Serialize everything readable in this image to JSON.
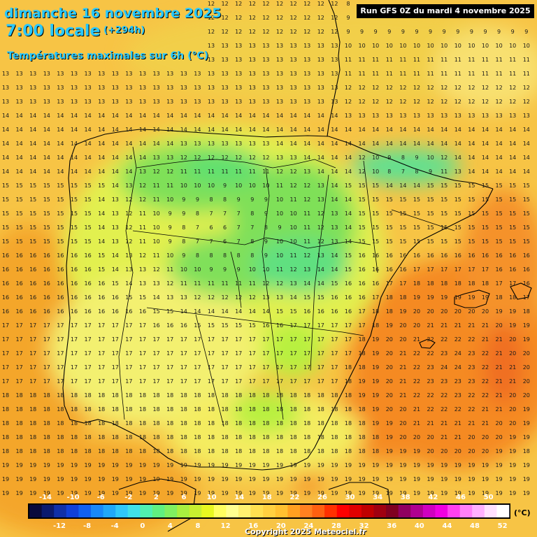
{
  "header": {
    "date": "dimanche 16 novembre 2025",
    "hour": "7:00 locale",
    "offset": "(+294h)",
    "variable": "Températures maximales sur 6h (°C)",
    "run": "Run GFS 0Z du mardi 4 novembre 2025"
  },
  "legend": {
    "unit": "(°C)",
    "top_labels": [
      "-14",
      "-10",
      "-6",
      "-2",
      "2",
      "6",
      "10",
      "14",
      "18",
      "22",
      "26",
      "30",
      "34",
      "38",
      "42",
      "46",
      "50"
    ],
    "bottom_labels": [
      "-12",
      "-8",
      "-4",
      "0",
      "4",
      "8",
      "12",
      "16",
      "20",
      "24",
      "28",
      "32",
      "36",
      "40",
      "44",
      "48",
      "52"
    ],
    "colors": [
      "#0a0a3c",
      "#0b1a6e",
      "#1030a8",
      "#1040d8",
      "#1060f0",
      "#1888f8",
      "#20a8f8",
      "#30c8f8",
      "#40e0e8",
      "#50f0b0",
      "#60f080",
      "#80f060",
      "#a8f040",
      "#c8f030",
      "#e8f820",
      "#ffff60",
      "#ffff90",
      "#fff070",
      "#ffe050",
      "#ffd040",
      "#ffc030",
      "#ffa020",
      "#ff8020",
      "#ff6010",
      "#ff3000",
      "#ff0000",
      "#e00000",
      "#c00000",
      "#a00010",
      "#800020",
      "#900060",
      "#b00090",
      "#d000c0",
      "#f000e0",
      "#ff40f0",
      "#ff80f8",
      "#ffb0ff",
      "#ffe0ff",
      "#ffffff"
    ]
  },
  "footer": {
    "copyright": "Copyright 2025 Meteociel.fr"
  }
}
